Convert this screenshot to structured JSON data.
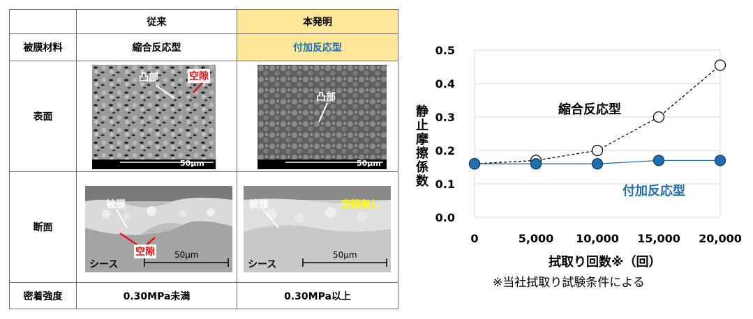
{
  "table": {
    "header": [
      "従来",
      "本発明"
    ],
    "rows": [
      {
        "label": "被膜材料",
        "conventional": "縮合反応型",
        "invention": "付加反応型"
      },
      {
        "label": "表面"
      },
      {
        "label": "断面"
      },
      {
        "label": "密着強度",
        "conventional": "0.30MPa未満",
        "invention": "0.30MPa以上"
      }
    ],
    "surface": {
      "conventional_labels": [
        "凸部",
        "空隙"
      ],
      "invention_labels": [
        "凸部"
      ],
      "scale": "50μm"
    },
    "cross_section": {
      "conventional_labels": [
        "被膜",
        "空隙",
        "シース"
      ],
      "invention_labels": [
        "被膜",
        "空隙無し",
        "シース"
      ],
      "scale": "50μm"
    }
  },
  "chart_data": {
    "type": "line",
    "ylabel": "静止摩擦係数",
    "xlabel": "拭取り回数※（回）",
    "note": "※当社拭取り試験条件による",
    "x": [
      0,
      5000,
      10000,
      15000,
      20000
    ],
    "x_tick_labels": [
      "0",
      "5,000",
      "10,000",
      "15,000",
      "20,000"
    ],
    "y_tick_labels": [
      "0.0",
      "0.1",
      "0.2",
      "0.3",
      "0.4",
      "0.5"
    ],
    "ylim": [
      0,
      0.5
    ],
    "xlim": [
      0,
      20000
    ],
    "grid": "horizontal",
    "series": [
      {
        "name": "縮合反応型",
        "values": [
          0.16,
          0.17,
          0.2,
          0.3,
          0.455
        ],
        "color": "#000000",
        "marker": "open-circle",
        "line": "dashed"
      },
      {
        "name": "付加反応型",
        "values": [
          0.16,
          0.16,
          0.16,
          0.17,
          0.17
        ],
        "color": "#1f6fb0",
        "marker": "filled-circle",
        "line": "solid"
      }
    ]
  }
}
